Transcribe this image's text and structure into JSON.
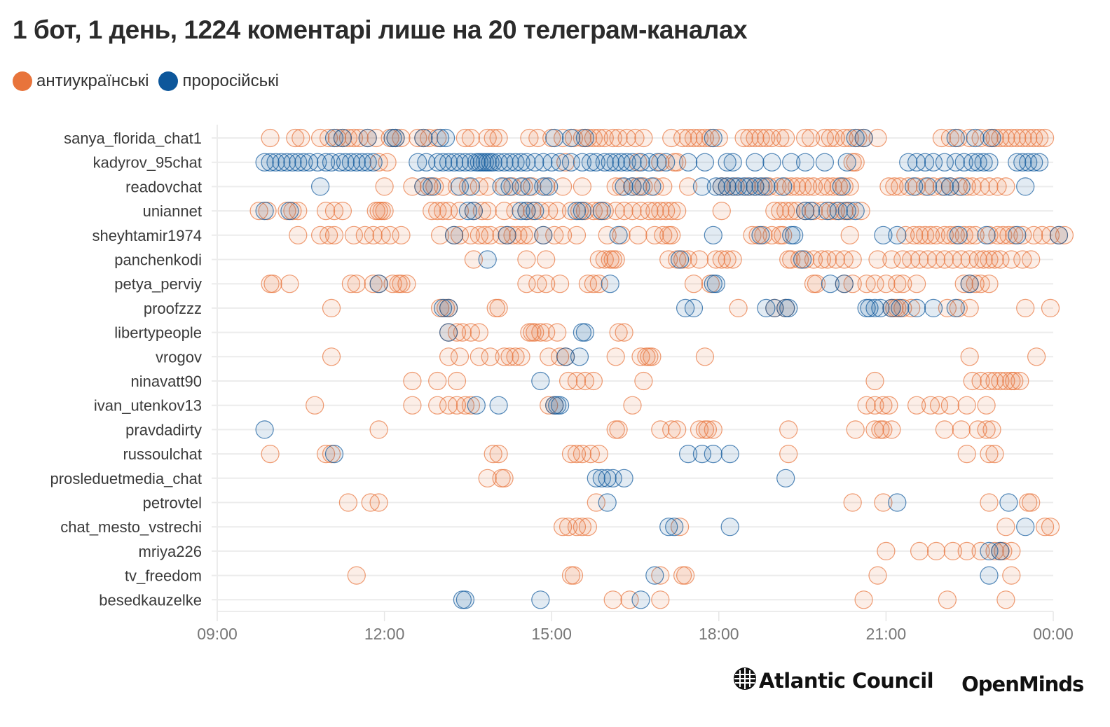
{
  "chart_data": {
    "type": "scatter",
    "title": "1 бот, 1 день, 1224 коментарі лише на 20 телеграм-каналах",
    "xlabel": "",
    "ylabel": "",
    "x_unit": "hour of day",
    "xlim": [
      9,
      24
    ],
    "x_ticks": [
      {
        "value": 9,
        "label": "09:00"
      },
      {
        "value": 12,
        "label": "12:00"
      },
      {
        "value": 15,
        "label": "15:00"
      },
      {
        "value": 18,
        "label": "18:00"
      },
      {
        "value": 21,
        "label": "21:00"
      },
      {
        "value": 24,
        "label": "00:00"
      }
    ],
    "grid": true,
    "legend_position": "top-left",
    "series": [
      {
        "key": "anti",
        "name": "антиукраїнські",
        "color": "#E8743B"
      },
      {
        "key": "pro",
        "name": "проросійські",
        "color": "#0D579B"
      }
    ],
    "categories": [
      "sanya_florida_chat1",
      "kadyrov_95chat",
      "readovchat",
      "uniannet",
      "sheyhtamir1974",
      "panchenkodi",
      "petya_perviy",
      "proofzzz",
      "libertypeople",
      "vrogov",
      "ninavatt90",
      "ivan_utenkov13",
      "pravdadirty",
      "russoulchat",
      "prosleduetmedia_chat",
      "petrovtel",
      "chat_mesto_vstrechi",
      "mriya226",
      "tv_freedom",
      "besedkauzelke"
    ],
    "rows": [
      {
        "anti": [
          9.95,
          10.4,
          10.5,
          10.85,
          11.0,
          11.15,
          11.25,
          11.35,
          11.45,
          11.55,
          11.7,
          11.85,
          12.1,
          12.2,
          12.3,
          12.6,
          12.7,
          12.8,
          12.95,
          13.45,
          13.55,
          13.85,
          13.95,
          14.05,
          14.6,
          14.75,
          15.0,
          15.2,
          15.4,
          15.55,
          15.65,
          15.75,
          15.85,
          15.95,
          16.1,
          16.2,
          16.35,
          16.5,
          16.65,
          17.15,
          17.35,
          17.45,
          17.55,
          17.65,
          17.75,
          17.85,
          18.0,
          18.45,
          18.55,
          18.65,
          18.75,
          18.85,
          18.95,
          19.1,
          19.2,
          19.55,
          19.65,
          19.9,
          20.0,
          20.1,
          20.25,
          20.35,
          20.5,
          20.6,
          20.85,
          22.0,
          22.15,
          22.3,
          22.5,
          22.7,
          22.85,
          22.95,
          23.05,
          23.15,
          23.25,
          23.35,
          23.45,
          23.55,
          23.65,
          23.75,
          23.85
        ],
        "pro": [
          11.1,
          11.25,
          11.7,
          12.15,
          12.2,
          12.7,
          13.0,
          13.1,
          15.05,
          15.35,
          15.6,
          17.9,
          20.45,
          20.6,
          22.25,
          22.6,
          22.9
        ]
      },
      {
        "anti": [
          11.9,
          12.05,
          15.25,
          16.55,
          16.95,
          17.2,
          17.25,
          20.4,
          20.45
        ],
        "pro": [
          9.85,
          9.95,
          10.05,
          10.15,
          10.25,
          10.35,
          10.45,
          10.55,
          10.65,
          10.8,
          10.95,
          11.05,
          11.2,
          11.3,
          11.4,
          11.5,
          11.6,
          11.7,
          11.8,
          12.6,
          12.75,
          12.95,
          13.05,
          13.15,
          13.25,
          13.35,
          13.45,
          13.55,
          13.65,
          13.7,
          13.75,
          13.8,
          13.85,
          13.9,
          13.95,
          14.05,
          14.15,
          14.25,
          14.35,
          14.45,
          14.55,
          14.7,
          14.85,
          15.0,
          15.15,
          15.35,
          15.55,
          15.7,
          15.8,
          15.95,
          16.05,
          16.15,
          16.25,
          16.35,
          16.45,
          16.6,
          16.75,
          16.9,
          17.05,
          17.45,
          17.75,
          18.15,
          18.25,
          18.65,
          18.95,
          19.3,
          19.55,
          19.9,
          20.3,
          21.4,
          21.55,
          21.7,
          21.85,
          22.05,
          22.25,
          22.4,
          22.55,
          22.65,
          22.75,
          22.85,
          23.35,
          23.45,
          23.55,
          23.65,
          23.75
        ]
      },
      {
        "anti": [
          12.0,
          12.5,
          12.7,
          12.8,
          12.9,
          13.05,
          13.3,
          13.5,
          13.7,
          13.85,
          14.15,
          14.3,
          14.5,
          14.65,
          14.9,
          15.2,
          15.55,
          16.15,
          16.25,
          16.45,
          16.55,
          16.65,
          16.85,
          17.0,
          17.45,
          18.05,
          18.15,
          18.3,
          18.5,
          18.65,
          18.8,
          18.9,
          19.05,
          19.2,
          19.3,
          19.4,
          19.5,
          19.6,
          19.7,
          19.85,
          19.95,
          20.05,
          20.15,
          20.25,
          20.35,
          21.05,
          21.15,
          21.25,
          21.4,
          21.55,
          21.7,
          21.85,
          22.0,
          22.15,
          22.3,
          22.45,
          22.55,
          22.7,
          22.85,
          23.0,
          23.15
        ],
        "pro": [
          10.85,
          12.7,
          12.85,
          13.35,
          13.55,
          14.1,
          14.25,
          14.45,
          14.6,
          14.85,
          14.95,
          16.3,
          16.45,
          16.6,
          16.8,
          17.7,
          17.95,
          18.05,
          18.15,
          18.25,
          18.35,
          18.45,
          18.55,
          18.65,
          18.75,
          18.85,
          19.15,
          20.2,
          21.5,
          21.75,
          22.05,
          22.15,
          22.35,
          23.5
        ]
      },
      {
        "anti": [
          9.75,
          9.9,
          10.25,
          10.35,
          10.45,
          10.95,
          11.1,
          11.25,
          11.85,
          11.9,
          11.95,
          12.0,
          12.85,
          12.95,
          13.05,
          13.15,
          13.35,
          13.6,
          13.75,
          13.85,
          14.15,
          14.35,
          14.55,
          14.65,
          14.8,
          14.95,
          15.1,
          15.35,
          15.5,
          15.6,
          15.75,
          15.85,
          15.95,
          16.15,
          16.3,
          16.45,
          16.6,
          16.75,
          16.85,
          16.95,
          17.05,
          17.15,
          17.25,
          18.05,
          19.0,
          19.1,
          19.2,
          19.3,
          19.4,
          19.55,
          19.7,
          19.85,
          20.0,
          20.1,
          20.25,
          20.35,
          20.55
        ],
        "pro": [
          9.85,
          10.3,
          13.5,
          13.6,
          14.45,
          14.55,
          14.7,
          15.45,
          15.55,
          15.9,
          19.55,
          19.65,
          19.95,
          20.15,
          20.3,
          20.45
        ]
      },
      {
        "anti": [
          10.45,
          10.85,
          11.0,
          11.1,
          11.45,
          11.65,
          11.8,
          11.95,
          12.1,
          12.3,
          13.0,
          13.25,
          13.35,
          13.55,
          13.7,
          13.8,
          13.9,
          14.1,
          14.2,
          14.3,
          14.4,
          14.5,
          14.6,
          14.85,
          15.05,
          15.2,
          15.45,
          16.0,
          16.25,
          16.55,
          16.85,
          17.0,
          17.1,
          17.15,
          18.6,
          18.7,
          18.8,
          18.95,
          19.1,
          19.15,
          20.35,
          21.35,
          21.5,
          21.6,
          21.7,
          21.8,
          21.9,
          22.05,
          22.15,
          22.25,
          22.4,
          22.5,
          22.6,
          22.85,
          23.0,
          23.1,
          23.2,
          23.3,
          23.45,
          23.65,
          23.8,
          23.95,
          24.1,
          24.2
        ],
        "pro": [
          13.25,
          14.2,
          14.85,
          16.2,
          17.9,
          18.75,
          19.3,
          19.35,
          20.95,
          21.2,
          22.3,
          22.8,
          23.35,
          24.1
        ]
      },
      {
        "anti": [
          13.6,
          14.55,
          14.9,
          15.85,
          15.95,
          16.05,
          16.1,
          16.15,
          17.1,
          17.25,
          17.35,
          17.45,
          17.65,
          17.95,
          18.05,
          18.15,
          18.25,
          19.25,
          19.3,
          19.45,
          19.55,
          19.7,
          19.85,
          19.95,
          20.1,
          20.25,
          20.4,
          20.85,
          21.1,
          21.3,
          21.45,
          21.6,
          21.75,
          21.9,
          22.05,
          22.2,
          22.35,
          22.5,
          22.65,
          22.75,
          22.85,
          22.95,
          23.05,
          23.25,
          23.45,
          23.6
        ],
        "pro": [
          13.85,
          17.3,
          19.5
        ]
      },
      {
        "anti": [
          9.95,
          10.0,
          10.3,
          11.4,
          11.5,
          11.8,
          11.9,
          12.15,
          12.25,
          12.3,
          12.4,
          14.55,
          14.75,
          14.9,
          15.15,
          15.65,
          15.75,
          15.85,
          17.55,
          17.85,
          19.7,
          19.75,
          20.25,
          20.4,
          20.65,
          20.8,
          21.0,
          21.2,
          21.3,
          21.55,
          22.4,
          22.5,
          22.6,
          22.7,
          22.85
        ],
        "pro": [
          11.9,
          16.05,
          17.9,
          17.95,
          20.0,
          20.25,
          22.5
        ]
      },
      {
        "anti": [
          11.05,
          13.0,
          13.1,
          13.15,
          14.0,
          14.05,
          18.35,
          19.0,
          19.2,
          21.1,
          21.15,
          21.2,
          21.3,
          21.45,
          22.1,
          22.3,
          22.5,
          23.5,
          23.95
        ],
        "pro": [
          13.05,
          13.15,
          17.4,
          17.55,
          18.85,
          19.0,
          19.2,
          19.25,
          20.65,
          20.7,
          20.8,
          20.9,
          21.1,
          21.25,
          21.55,
          21.85,
          22.25
        ]
      },
      {
        "anti": [
          13.15,
          13.3,
          13.4,
          13.55,
          13.7,
          14.6,
          14.65,
          14.7,
          14.8,
          14.9,
          15.1,
          16.2,
          16.3
        ],
        "pro": [
          13.15,
          15.55,
          15.6
        ]
      },
      {
        "anti": [
          11.05,
          13.15,
          13.35,
          13.7,
          13.9,
          14.15,
          14.25,
          14.35,
          14.45,
          14.95,
          15.15,
          15.25,
          16.15,
          16.6,
          16.7,
          16.75,
          16.8,
          17.75,
          22.5,
          23.7
        ],
        "pro": [
          15.25,
          15.5
        ]
      },
      {
        "anti": [
          12.5,
          12.95,
          13.3,
          15.3,
          15.45,
          15.6,
          15.75,
          16.65,
          20.8,
          22.55,
          22.7,
          22.85,
          22.95,
          23.05,
          23.15,
          23.25,
          23.3,
          23.4
        ],
        "pro": [
          14.8
        ]
      },
      {
        "anti": [
          10.75,
          12.5,
          12.95,
          13.15,
          13.3,
          13.45,
          13.55,
          14.95,
          15.05,
          16.45,
          20.65,
          20.8,
          20.95,
          21.05,
          21.55,
          21.8,
          21.95,
          22.15,
          22.45,
          22.8
        ],
        "pro": [
          13.65,
          14.05,
          15.05,
          15.1,
          15.15
        ]
      },
      {
        "anti": [
          11.9,
          16.15,
          16.2,
          16.95,
          17.15,
          17.25,
          17.65,
          17.75,
          17.8,
          17.9,
          19.25,
          20.45,
          20.8,
          20.9,
          20.95,
          21.1,
          22.05,
          22.35,
          22.65,
          22.8,
          22.9
        ],
        "pro": [
          9.85
        ]
      },
      {
        "anti": [
          9.95,
          10.95,
          11.05,
          13.95,
          14.05,
          15.35,
          15.45,
          15.55,
          15.7,
          15.85,
          19.25,
          22.45,
          22.85,
          22.95
        ],
        "pro": [
          11.1,
          17.45,
          17.7,
          17.9,
          18.2
        ]
      },
      {
        "anti": [
          13.85,
          14.1,
          14.15
        ],
        "pro": [
          15.8,
          15.9,
          16.0,
          16.1,
          16.3,
          19.2
        ]
      },
      {
        "anti": [
          11.35,
          11.75,
          11.9,
          15.8,
          20.4,
          20.95,
          22.85,
          23.55,
          23.6
        ],
        "pro": [
          16.0,
          21.2,
          23.2
        ]
      },
      {
        "anti": [
          15.2,
          15.3,
          15.45,
          15.55,
          15.65,
          17.3,
          23.15,
          23.85,
          23.95
        ],
        "pro": [
          17.1,
          17.2,
          18.2,
          23.5
        ]
      },
      {
        "anti": [
          21.0,
          21.6,
          21.9,
          22.2,
          22.45,
          22.7,
          22.95,
          23.05,
          23.1,
          23.25
        ],
        "pro": [
          22.85,
          23.05
        ]
      },
      {
        "anti": [
          11.5,
          15.35,
          15.4,
          16.95,
          17.35,
          17.4,
          20.85,
          23.25
        ],
        "pro": [
          16.85,
          22.85
        ]
      },
      {
        "anti": [
          16.1,
          16.4,
          16.95,
          20.6,
          22.1,
          23.15
        ],
        "pro": [
          13.4,
          13.45,
          14.8,
          16.6
        ]
      }
    ]
  },
  "legend": {
    "items": [
      {
        "label": "антиукраїнські",
        "color": "#E8743B"
      },
      {
        "label": "проросійські",
        "color": "#0D579B"
      }
    ]
  },
  "logos": {
    "atlantic_council": "Atlantic Council",
    "openminds": "OpenMinds"
  }
}
